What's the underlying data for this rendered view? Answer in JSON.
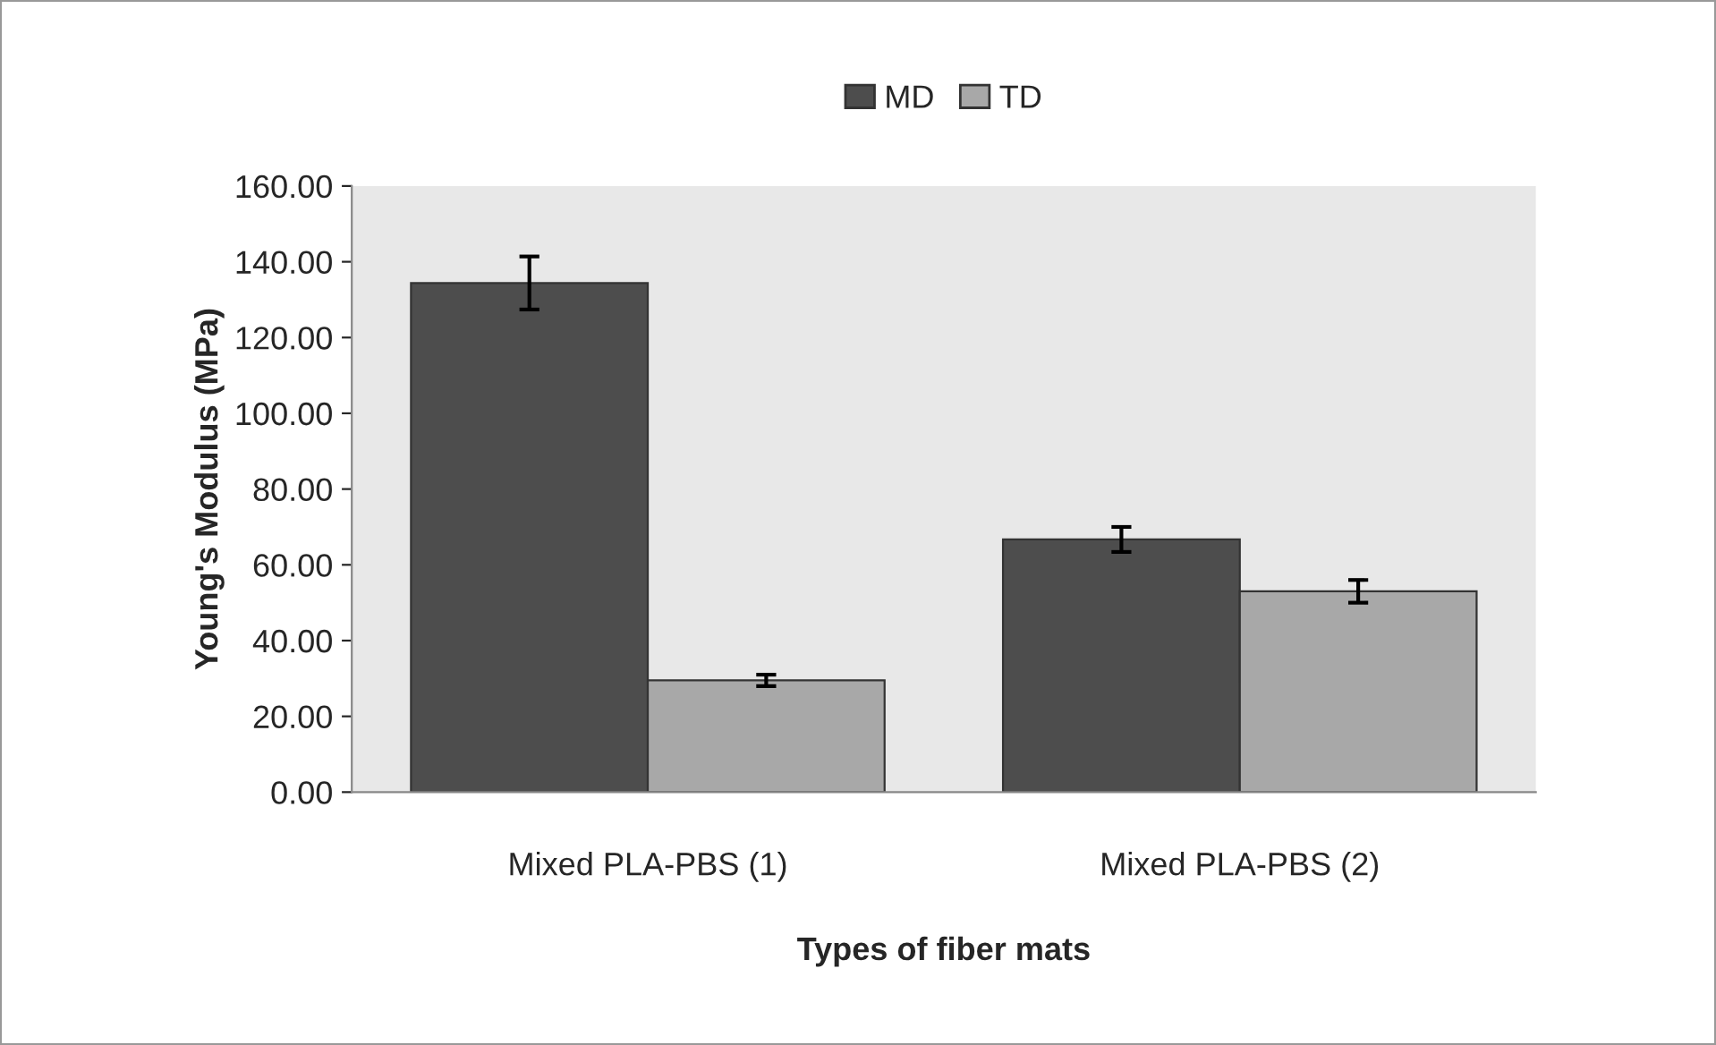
{
  "chart_data": {
    "type": "bar",
    "xlabel": "Types of fiber mats",
    "ylabel": "Young's Modulus (MPa)",
    "categories": [
      "Mixed PLA-PBS (1)",
      "Mixed PLA-PBS (2)"
    ],
    "series": [
      {
        "name": "MD",
        "color": "#4d4d4d",
        "values": [
          134.4,
          66.7
        ],
        "errors": [
          7,
          3.3
        ]
      },
      {
        "name": "TD",
        "color": "#a8a8a8",
        "values": [
          29.5,
          53
        ],
        "errors": [
          1.5,
          3
        ]
      }
    ],
    "ylim": [
      0,
      160
    ],
    "yticks": [
      {
        "value": 0,
        "label": "0.00"
      },
      {
        "value": 20,
        "label": "20.00"
      },
      {
        "value": 40,
        "label": "40.00"
      },
      {
        "value": 60,
        "label": "60.00"
      },
      {
        "value": 80,
        "label": "80.00"
      },
      {
        "value": 100,
        "label": "100.00"
      },
      {
        "value": 120,
        "label": "120.00"
      },
      {
        "value": 140,
        "label": "140.00"
      },
      {
        "value": 160,
        "label": "160.00"
      }
    ],
    "grid": false,
    "legend": "top"
  }
}
